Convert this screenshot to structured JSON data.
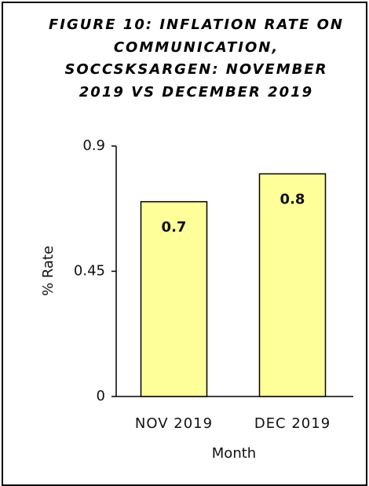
{
  "chart_data": {
    "type": "bar",
    "title": "FIGURE 10: INFLATION RATE ON COMMUNICATION, SOCCSKSARGEN: NOVEMBER 2019 VS DECEMBER 2019",
    "categories": [
      "NOV 2019",
      "DEC 2019"
    ],
    "values": [
      0.7,
      0.8
    ],
    "color": "#ffff99",
    "ylim": [
      0,
      0.9
    ],
    "yticks": [
      0,
      0.45,
      0.9
    ],
    "x_label": "Month",
    "y_label": "% Rate",
    "grid": false
  }
}
